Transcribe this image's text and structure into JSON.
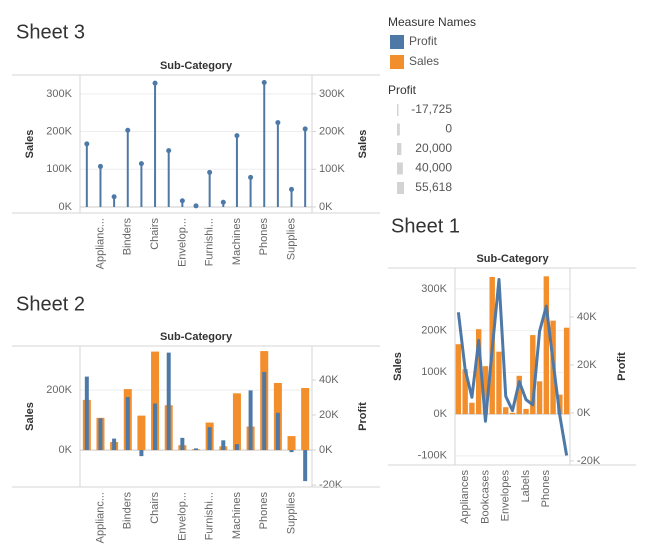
{
  "legend": {
    "title": "Measure Names",
    "items": [
      {
        "name": "Profit",
        "color": "#4e79a7"
      },
      {
        "name": "Sales",
        "color": "#f28e2b"
      }
    ]
  },
  "size_legend": {
    "title": "Profit",
    "values": [
      {
        "value": -17725,
        "label": "-17,725"
      },
      0,
      {
        "value": 20000,
        "label": "20,000"
      },
      {
        "value": 40000,
        "label": "40,000"
      },
      {
        "value": 55618,
        "label": "55,618"
      }
    ],
    "color": "#d3d3d3"
  },
  "chart_data": [
    {
      "type": "lollipop",
      "title": "Sheet 3",
      "xlabel": "Sub-Category",
      "ylabel": "Sales",
      "y2label": "Sales",
      "categories": [
        null,
        "Applianc...",
        null,
        "Binders",
        null,
        "Chairs",
        null,
        "Envelop...",
        null,
        "Furnishi...",
        null,
        "Machines",
        null,
        "Phones",
        null,
        "Supplies",
        null
      ],
      "series": [
        {
          "color": "#4e79a7",
          "axis": "y",
          "values": [
            167380,
            107532,
            27119,
            203413,
            114880,
            328449,
            149528,
            16476,
            3024,
            91705,
            12486,
            189239,
            78479,
            330007,
            223844,
            46674,
            206966
          ]
        }
      ],
      "ylim": [
        -16000,
        350000
      ],
      "yticks": [
        {
          "value": 0,
          "label": "0K"
        },
        {
          "value": 100000,
          "label": "100K"
        },
        {
          "value": 200000,
          "label": "200K"
        },
        {
          "value": 300000,
          "label": "300K"
        }
      ],
      "y2lim": [
        -16000,
        350000
      ],
      "y2ticks": [
        {
          "value": 0,
          "label": "0K"
        },
        {
          "value": 100000,
          "label": "100K"
        },
        {
          "value": 200000,
          "label": "200K"
        },
        {
          "value": 300000,
          "label": "300K"
        }
      ],
      "grid": true
    },
    {
      "type": "bar",
      "title": "Sheet 2",
      "xlabel": "Sub-Category",
      "ylabel": "Sales",
      "y2label": "Profit",
      "categories": [
        null,
        "Applianc...",
        null,
        "Binders",
        null,
        "Chairs",
        null,
        "Envelop...",
        null,
        "Furnishi...",
        null,
        "Machines",
        null,
        "Phones",
        null,
        "Supplies",
        null
      ],
      "series": [
        {
          "color": "#f28e2b",
          "axis": "y",
          "values": [
            167380,
            107532,
            27119,
            203413,
            114880,
            328449,
            149528,
            16476,
            3024,
            91705,
            12486,
            189239,
            78479,
            330007,
            223844,
            46674,
            206966
          ]
        },
        {
          "color": "#4e79a7",
          "axis": "y2",
          "values": [
            41937,
            18138,
            6528,
            30222,
            -3473,
            26590,
            55618,
            6964,
            950,
            13059,
            5546,
            3385,
            34054,
            44516,
            21279,
            -1189,
            -17725
          ]
        }
      ],
      "ylim": [
        -123000,
        347000
      ],
      "yticks": [
        {
          "value": 0,
          "label": "0K"
        },
        {
          "value": 200000,
          "label": "200K"
        }
      ],
      "y2lim": [
        -21100,
        59400
      ],
      "y2ticks": [
        {
          "value": -20000,
          "label": "-20K"
        },
        {
          "value": 0,
          "label": "0K"
        },
        {
          "value": 20000,
          "label": "20K"
        },
        {
          "value": 40000,
          "label": "40K"
        }
      ],
      "grid": true
    },
    {
      "type": "combo",
      "title": "Sheet 1",
      "xlabel": "Sub-Category",
      "ylabel": "Sales",
      "y2label": "Profit",
      "categories": [
        null,
        "Appliances",
        null,
        null,
        "Bookcases",
        null,
        null,
        "Envelopes",
        null,
        null,
        "Labels",
        null,
        null,
        "Phones",
        null,
        null,
        null
      ],
      "series": [
        {
          "color": "#f28e2b",
          "axis": "y",
          "values": [
            167380,
            107532,
            27119,
            203413,
            114880,
            328449,
            149528,
            16476,
            3024,
            91705,
            12486,
            189239,
            78479,
            330007,
            223844,
            46674,
            206966
          ]
        },
        {
          "color": "#4e79a7",
          "axis": "y2",
          "values": [
            41937,
            18138,
            6528,
            30222,
            -3473,
            26590,
            55618,
            6964,
            950,
            13059,
            5546,
            3385,
            34054,
            44516,
            21279,
            -1189,
            -17725
          ]
        }
      ],
      "ylim": [
        -122000,
        350000
      ],
      "yticks": [
        {
          "value": -100000,
          "label": "-100K"
        },
        {
          "value": 0,
          "label": "0K"
        },
        {
          "value": 100000,
          "label": "100K"
        },
        {
          "value": 200000,
          "label": "200K"
        },
        {
          "value": 300000,
          "label": "300K"
        }
      ],
      "y2lim": [
        -21700,
        60400
      ],
      "y2ticks": [
        {
          "value": -20000,
          "label": "-20K"
        },
        {
          "value": 0,
          "label": "0K"
        },
        {
          "value": 20000,
          "label": "20K"
        },
        {
          "value": 40000,
          "label": "40K"
        }
      ],
      "grid": true
    }
  ]
}
